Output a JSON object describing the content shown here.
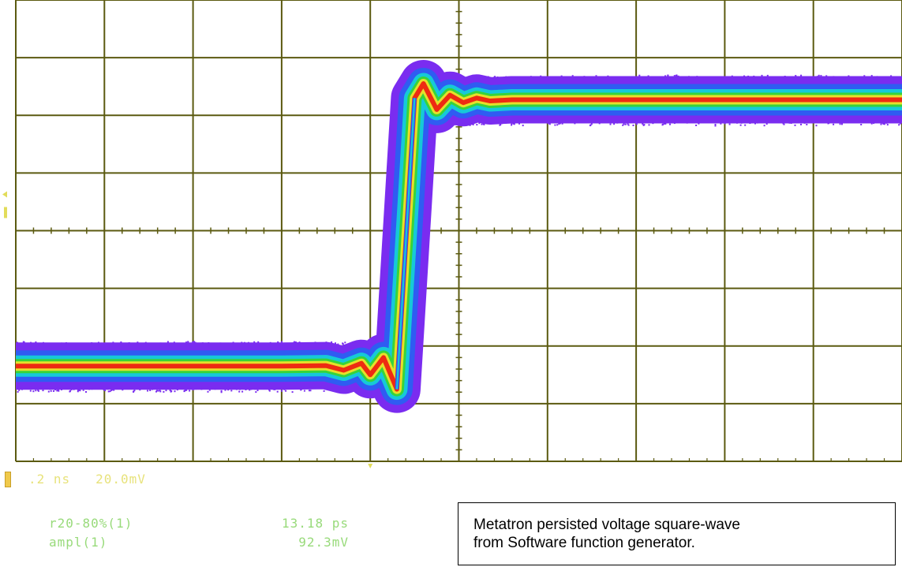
{
  "chart_data": {
    "type": "line",
    "title": "",
    "xlabel": "",
    "ylabel": "",
    "grid": true,
    "x_divisions": 10,
    "y_divisions": 8,
    "xlim": [
      0,
      10
    ],
    "ylim": [
      -4,
      4
    ],
    "series": [
      {
        "x": [
          0,
          1,
          2,
          3,
          3.5,
          3.7,
          3.9,
          4.0,
          4.15,
          4.3,
          4.5,
          4.6,
          4.75,
          4.9,
          5.05,
          5.2,
          5.35,
          5.6,
          6,
          7,
          8,
          9,
          10
        ],
        "y": [
          -2.35,
          -2.35,
          -2.35,
          -2.35,
          -2.34,
          -2.42,
          -2.3,
          -2.5,
          -2.2,
          -2.75,
          2.3,
          2.55,
          2.1,
          2.35,
          2.22,
          2.3,
          2.25,
          2.27,
          2.27,
          2.27,
          2.27,
          2.27,
          2.27
        ]
      }
    ]
  },
  "scope": {
    "scale_readout": ".2 ns   20.0mV",
    "measurements": [
      {
        "label": "r20-80%(1)",
        "value": "13.18 ps"
      },
      {
        "label": "ampl(1)",
        "value": "92.3mV"
      }
    ]
  },
  "caption": {
    "line1": "Metatron persisted voltage square-wave",
    "line2": "from Software function generator."
  },
  "colors": {
    "grid": "#5b5a10",
    "persist_outer": "#7a2cf0",
    "persist_blue": "#2f5cf2",
    "persist_cyan": "#16c9d8",
    "persist_green": "#37d43a",
    "persist_yellow": "#e6e02a",
    "persist_red": "#ee2b12",
    "readout_green": "#7fd25a",
    "readout_yellow": "#e2dc5a"
  }
}
